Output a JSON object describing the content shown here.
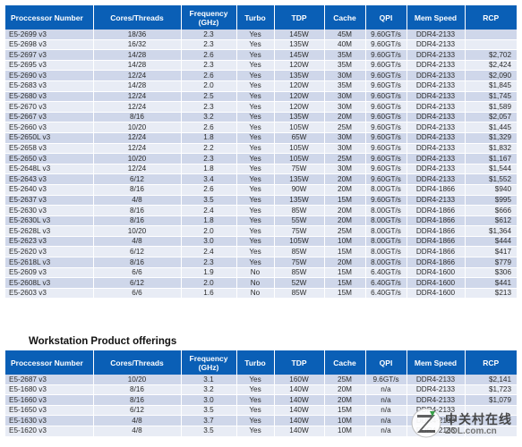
{
  "headers": [
    "Proccessor Number",
    "Cores/Threads",
    "Frequency (GHz)",
    "Turbo",
    "TDP",
    "Cache",
    "QPI",
    "Mem Speed",
    "RCP"
  ],
  "server_rows": [
    [
      "E5-2699 v3",
      "18/36",
      "2.3",
      "Yes",
      "145W",
      "45M",
      "9.60GT/s",
      "DDR4-2133",
      ""
    ],
    [
      "E5-2698 v3",
      "16/32",
      "2.3",
      "Yes",
      "135W",
      "40M",
      "9.60GT/s",
      "DDR4-2133",
      ""
    ],
    [
      "E5-2697 v3",
      "14/28",
      "2.6",
      "Yes",
      "145W",
      "35M",
      "9.60GT/s",
      "DDR4-2133",
      "$2,702"
    ],
    [
      "E5-2695 v3",
      "14/28",
      "2.3",
      "Yes",
      "120W",
      "35M",
      "9.60GT/s",
      "DDR4-2133",
      "$2,424"
    ],
    [
      "E5-2690 v3",
      "12/24",
      "2.6",
      "Yes",
      "135W",
      "30M",
      "9.60GT/s",
      "DDR4-2133",
      "$2,090"
    ],
    [
      "E5-2683 v3",
      "14/28",
      "2.0",
      "Yes",
      "120W",
      "35M",
      "9.60GT/s",
      "DDR4-2133",
      "$1,845"
    ],
    [
      "E5-2680 v3",
      "12/24",
      "2.5",
      "Yes",
      "120W",
      "30M",
      "9.60GT/s",
      "DDR4-2133",
      "$1,745"
    ],
    [
      "E5-2670 v3",
      "12/24",
      "2.3",
      "Yes",
      "120W",
      "30M",
      "9.60GT/s",
      "DDR4-2133",
      "$1,589"
    ],
    [
      "E5-2667 v3",
      "8/16",
      "3.2",
      "Yes",
      "135W",
      "20M",
      "9.60GT/s",
      "DDR4-2133",
      "$2,057"
    ],
    [
      "E5-2660 v3",
      "10/20",
      "2.6",
      "Yes",
      "105W",
      "25M",
      "9.60GT/s",
      "DDR4-2133",
      "$1,445"
    ],
    [
      "E5-2650L v3",
      "12/24",
      "1.8",
      "Yes",
      "65W",
      "30M",
      "9.60GT/s",
      "DDR4-2133",
      "$1,329"
    ],
    [
      "E5-2658 v3",
      "12/24",
      "2.2",
      "Yes",
      "105W",
      "30M",
      "9.60GT/s",
      "DDR4-2133",
      "$1,832"
    ],
    [
      "E5-2650 v3",
      "10/20",
      "2.3",
      "Yes",
      "105W",
      "25M",
      "9.60GT/s",
      "DDR4-2133",
      "$1,167"
    ],
    [
      "E5-2648L v3",
      "12/24",
      "1.8",
      "Yes",
      "75W",
      "30M",
      "9.60GT/s",
      "DDR4-2133",
      "$1,544"
    ],
    [
      "E5-2643 v3",
      "6/12",
      "3.4",
      "Yes",
      "135W",
      "20M",
      "9.60GT/s",
      "DDR4-2133",
      "$1,552"
    ],
    [
      "E5-2640 v3",
      "8/16",
      "2.6",
      "Yes",
      "90W",
      "20M",
      "8.00GT/s",
      "DDR4-1866",
      "$940"
    ],
    [
      "E5-2637 v3",
      "4/8",
      "3.5",
      "Yes",
      "135W",
      "15M",
      "9.60GT/s",
      "DDR4-2133",
      "$995"
    ],
    [
      "E5-2630 v3",
      "8/16",
      "2.4",
      "Yes",
      "85W",
      "20M",
      "8.00GT/s",
      "DDR4-1866",
      "$666"
    ],
    [
      "E5-2630L v3",
      "8/16",
      "1.8",
      "Yes",
      "55W",
      "20M",
      "8.00GT/s",
      "DDR4-1866",
      "$612"
    ],
    [
      "E5-2628L v3",
      "10/20",
      "2.0",
      "Yes",
      "75W",
      "25M",
      "8.00GT/s",
      "DDR4-1866",
      "$1,364"
    ],
    [
      "E5-2623 v3",
      "4/8",
      "3.0",
      "Yes",
      "105W",
      "10M",
      "8.00GT/s",
      "DDR4-1866",
      "$444"
    ],
    [
      "E5-2620 v3",
      "6/12",
      "2.4",
      "Yes",
      "85W",
      "15M",
      "8.00GT/s",
      "DDR4-1866",
      "$417"
    ],
    [
      "E5-2618L v3",
      "8/16",
      "2.3",
      "Yes",
      "75W",
      "20M",
      "8.00GT/s",
      "DDR4-1866",
      "$779"
    ],
    [
      "E5-2609 v3",
      "6/6",
      "1.9",
      "No",
      "85W",
      "15M",
      "6.40GT/s",
      "DDR4-1600",
      "$306"
    ],
    [
      "E5-2608L v3",
      "6/12",
      "2.0",
      "No",
      "52W",
      "15M",
      "6.40GT/s",
      "DDR4-1600",
      "$441"
    ],
    [
      "E5-2603 v3",
      "6/6",
      "1.6",
      "No",
      "85W",
      "15M",
      "6.40GT/s",
      "DDR4-1600",
      "$213"
    ]
  ],
  "workstation": {
    "title": "Workstation Product offerings",
    "headers": [
      "Proccessor Number",
      "Cores/Threads",
      "Frequency (GHz)",
      "Turbo",
      "TDP",
      "Cache",
      "QPI",
      "Mem Speed",
      "RCP"
    ],
    "rows": [
      [
        "E5-2687 v3",
        "10/20",
        "3.1",
        "Yes",
        "160W",
        "25M",
        "9.6GT/s",
        "DDR4-2133",
        "$2,141"
      ],
      [
        "E5-1680 v3",
        "8/16",
        "3.2",
        "Yes",
        "140W",
        "20M",
        "n/a",
        "DDR4-2133",
        "$1,723"
      ],
      [
        "E5-1660 v3",
        "8/16",
        "3.0",
        "Yes",
        "140W",
        "20M",
        "n/a",
        "DDR4-2133",
        "$1,079"
      ],
      [
        "E5-1650 v3",
        "6/12",
        "3.5",
        "Yes",
        "140W",
        "15M",
        "n/a",
        "DDR4-2133",
        ""
      ],
      [
        "E5-1630 v3",
        "4/8",
        "3.7",
        "Yes",
        "140W",
        "10M",
        "n/a",
        "DDR4-2133",
        ""
      ],
      [
        "E5-1620 v3",
        "4/8",
        "3.5",
        "Yes",
        "140W",
        "10M",
        "n/a",
        "DDR4-2133",
        ""
      ]
    ]
  },
  "watermark": {
    "cn": "中关村在线",
    "url": "ZOL.com.cn",
    "logo_icon": "zol-z-logo-icon",
    "accent_color": "#2a9a3a"
  },
  "colors": {
    "header_bg": "#0a5fb6",
    "row_odd": "#cfd7ea",
    "row_even": "#e8ecf5"
  }
}
